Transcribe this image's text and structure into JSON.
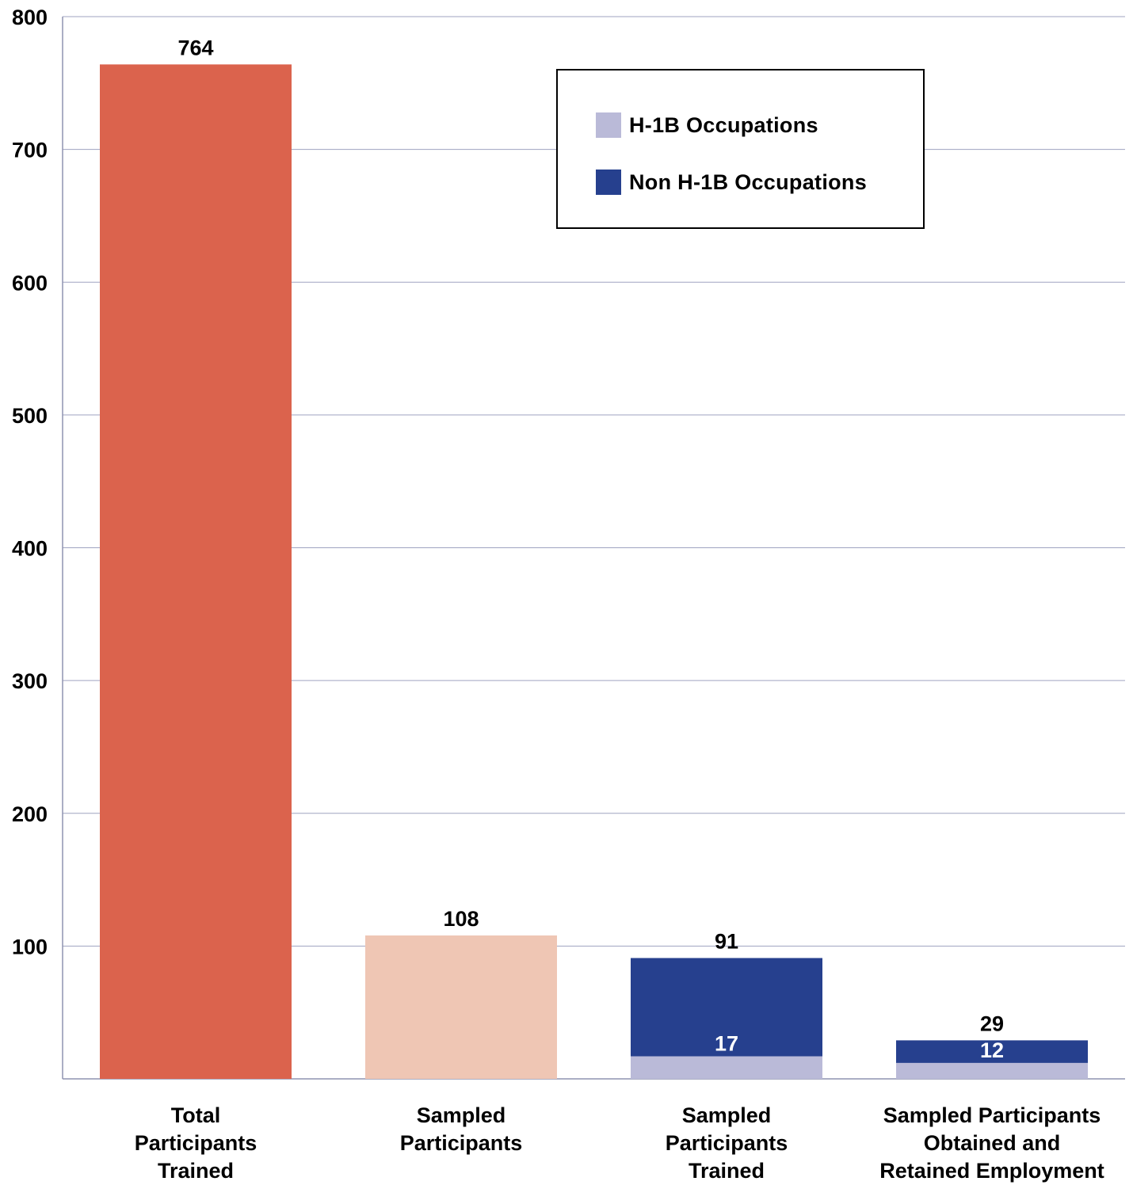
{
  "chart_data": {
    "type": "bar",
    "ylim": [
      0,
      800
    ],
    "yticks": [
      100,
      200,
      300,
      400,
      500,
      600,
      700,
      800
    ],
    "grid": true,
    "legend_position": "top-right",
    "categories": [
      [
        "Total",
        "Participants",
        "Trained"
      ],
      [
        "Sampled",
        "Participants"
      ],
      [
        "Sampled",
        "Participants",
        "Trained"
      ],
      [
        "Sampled Participants",
        "Obtained and",
        "Retained Employment"
      ]
    ],
    "single_bars": [
      {
        "category_index": 0,
        "value": 764,
        "label": "764",
        "color": "#db634d"
      },
      {
        "category_index": 1,
        "value": 108,
        "label": "108",
        "color": "#efc6b4"
      }
    ],
    "stacked_bars": [
      {
        "category_index": 2,
        "total_label": "91",
        "segments": [
          {
            "series": 0,
            "value": 17,
            "label": "17"
          },
          {
            "series": 1,
            "value": 91,
            "label": ""
          }
        ]
      },
      {
        "category_index": 3,
        "total_label": "29",
        "segments": [
          {
            "series": 0,
            "value": 12,
            "label": "12"
          },
          {
            "series": 1,
            "value": 29,
            "label": ""
          }
        ]
      }
    ],
    "series": [
      {
        "name": "H-1B Occupations",
        "color": "#babad8"
      },
      {
        "name": "Non H-1B Occupations",
        "color": "#26408e"
      }
    ]
  },
  "legend": {
    "items": [
      {
        "label": "H-1B Occupations",
        "color": "#babad8"
      },
      {
        "label": "Non H-1B Occupations",
        "color": "#26408e"
      }
    ]
  }
}
